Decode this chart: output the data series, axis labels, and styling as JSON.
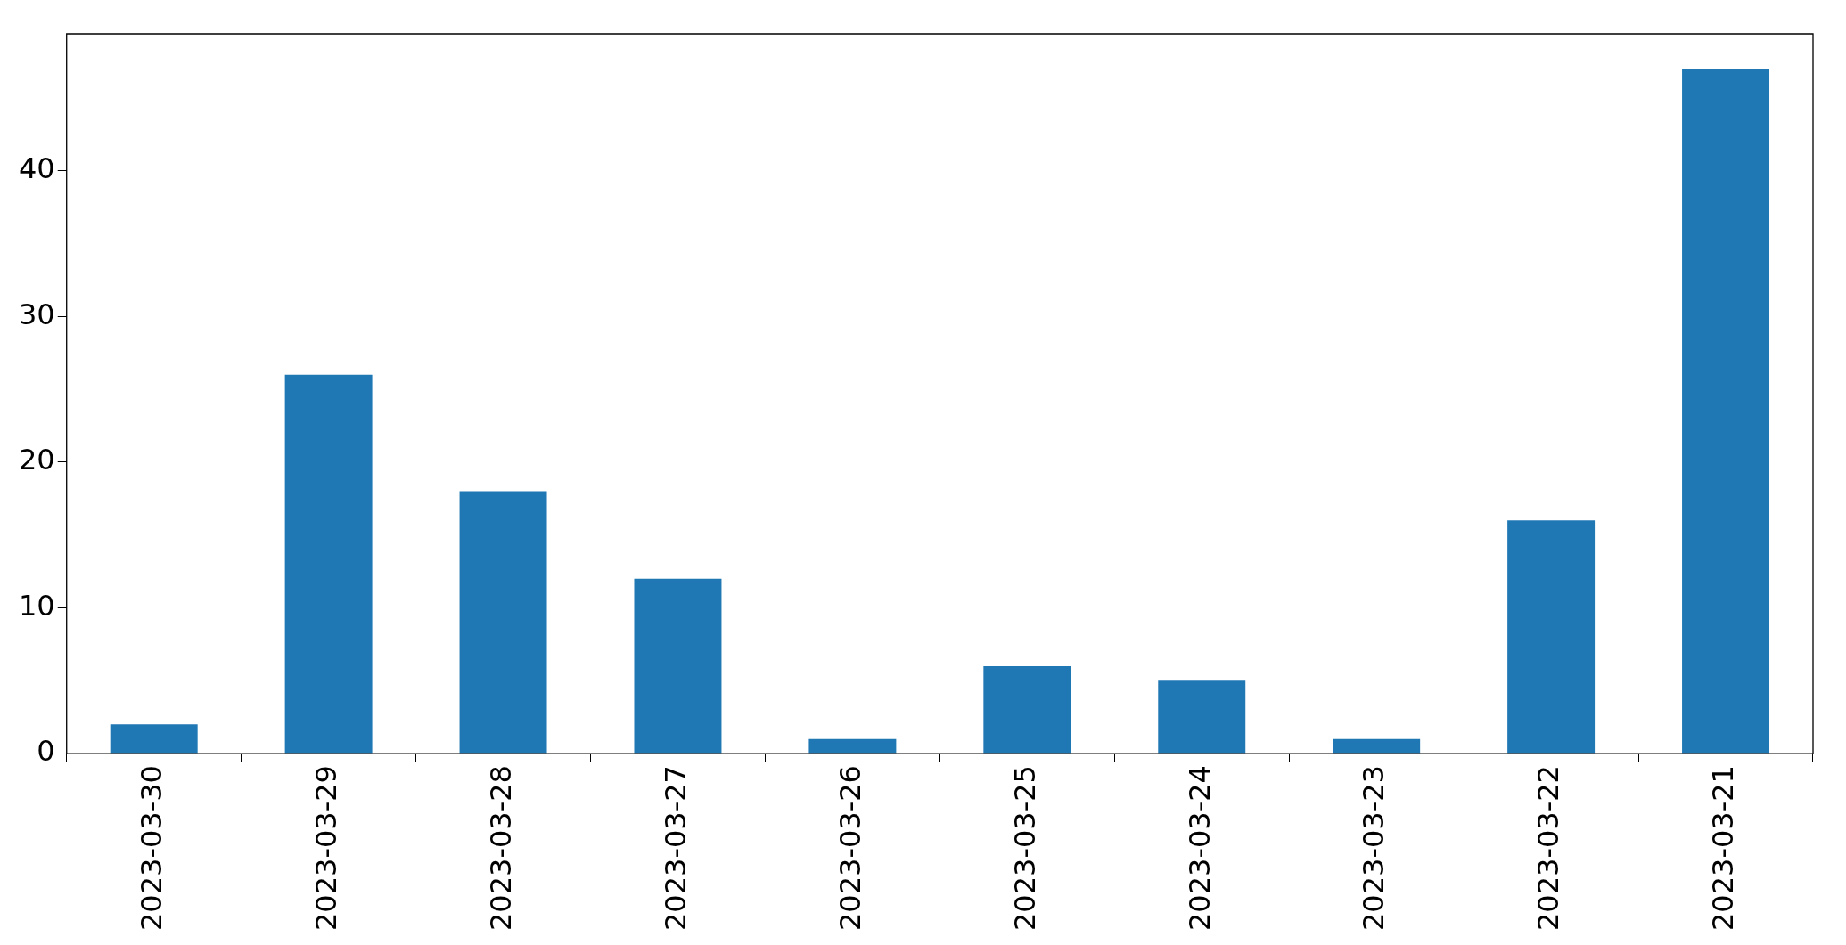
{
  "chart_data": {
    "type": "bar",
    "categories": [
      "2023-03-30",
      "2023-03-29",
      "2023-03-28",
      "2023-03-27",
      "2023-03-26",
      "2023-03-25",
      "2023-03-24",
      "2023-03-23",
      "2023-03-22",
      "2023-03-21"
    ],
    "values": [
      2,
      26,
      18,
      12,
      1,
      6,
      5,
      1,
      16,
      47
    ],
    "color": "#1f77b4",
    "ylim": [
      0,
      49.4
    ],
    "yticks": [
      0,
      10,
      20,
      30,
      40
    ],
    "grid": false,
    "legend": false
  }
}
